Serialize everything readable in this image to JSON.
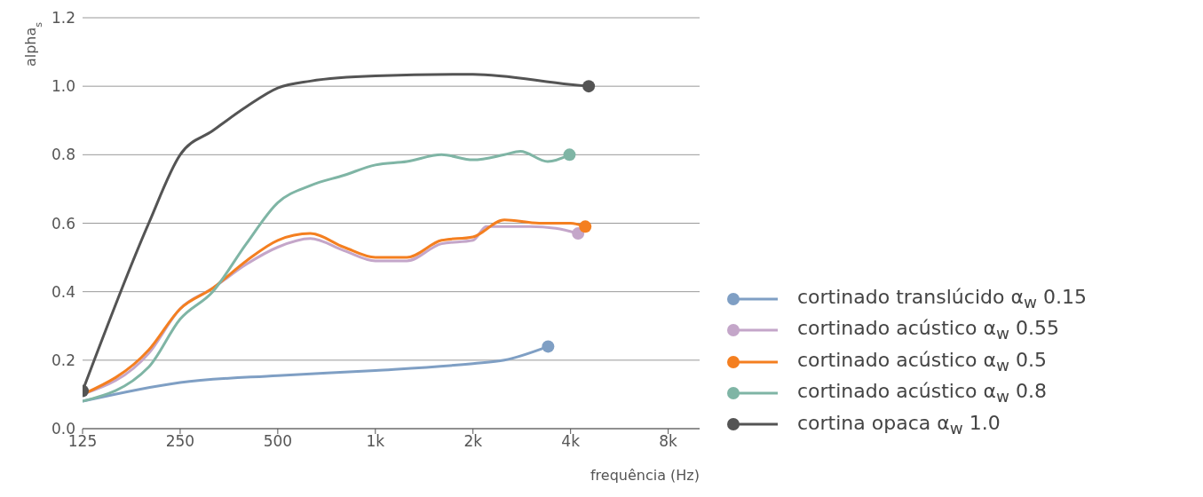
{
  "chart_data": {
    "type": "line",
    "xlabel": "frequência (Hz)",
    "ylabel": "alpha$_{s}$",
    "xlim": [
      125,
      10000
    ],
    "xticks": [
      {
        "value": 125,
        "label": "125"
      },
      {
        "value": 250,
        "label": "250"
      },
      {
        "value": 500,
        "label": "500"
      },
      {
        "value": 1000,
        "label": "1k"
      },
      {
        "value": 2000,
        "label": "2k"
      },
      {
        "value": 4000,
        "label": "4k"
      },
      {
        "value": 8000,
        "label": "8k"
      }
    ],
    "ylim": [
      0,
      1.2
    ],
    "yticks": [
      {
        "value": 0,
        "label": "0.0"
      },
      {
        "value": 0.2,
        "label": "0.2"
      },
      {
        "value": 0.4,
        "label": "0.4"
      },
      {
        "value": 0.6,
        "label": "0.6"
      },
      {
        "value": 0.8,
        "label": "0.8"
      },
      {
        "value": 1,
        "label": "1.0"
      },
      {
        "value": 1.2,
        "label": "1.2"
      }
    ],
    "log": "x",
    "grid": "y",
    "legend": "right",
    "series": [
      {
        "name": "cortinado translúcido α$_{w}$ 0.15",
        "color": "#7f9fc4",
        "x": [
          125,
          250,
          500,
          1000,
          2000,
          2500,
          3410
        ],
        "values": [
          0.08,
          0.135,
          0.155,
          0.17,
          0.19,
          0.2,
          0.24
        ]
      },
      {
        "name": "cortinado acústico α$_{w}$ 0.55",
        "color": "#c4a6c9",
        "x": [
          125,
          200,
          250,
          315,
          400,
          500,
          630,
          800,
          1000,
          1250,
          1600,
          2000,
          2200,
          3000,
          3600,
          4220
        ],
        "values": [
          0.1,
          0.22,
          0.35,
          0.41,
          0.48,
          0.53,
          0.555,
          0.52,
          0.49,
          0.49,
          0.54,
          0.55,
          0.59,
          0.59,
          0.585,
          0.57
        ]
      },
      {
        "name": "cortinado acústico α$_{w}$ 0.5",
        "color": "#f47f20",
        "x": [
          125,
          200,
          250,
          315,
          400,
          500,
          630,
          800,
          1000,
          1250,
          1600,
          2000,
          2500,
          3200,
          4000,
          4440
        ],
        "values": [
          0.1,
          0.23,
          0.35,
          0.41,
          0.49,
          0.55,
          0.57,
          0.53,
          0.5,
          0.5,
          0.55,
          0.56,
          0.61,
          0.6,
          0.6,
          0.59
        ]
      },
      {
        "name": "cortinado acústico α$_{w}$ 0.8",
        "color": "#7fb5a5",
        "x": [
          125,
          200,
          250,
          315,
          400,
          500,
          630,
          800,
          1000,
          1250,
          1600,
          2000,
          2500,
          2800,
          3400,
          3970
        ],
        "values": [
          0.08,
          0.18,
          0.32,
          0.4,
          0.54,
          0.66,
          0.71,
          0.74,
          0.77,
          0.78,
          0.8,
          0.785,
          0.8,
          0.81,
          0.78,
          0.8
        ]
      },
      {
        "name": "cortina opaca α$_{w}$ 1.0",
        "color": "#545454",
        "x": [
          125,
          200,
          250,
          315,
          400,
          500,
          630,
          1000,
          2000,
          4000,
          4550
        ],
        "values": [
          0.11,
          0.6,
          0.8,
          0.87,
          0.94,
          0.995,
          1.015,
          1.03,
          1.035,
          1.005,
          1.0
        ]
      }
    ]
  }
}
